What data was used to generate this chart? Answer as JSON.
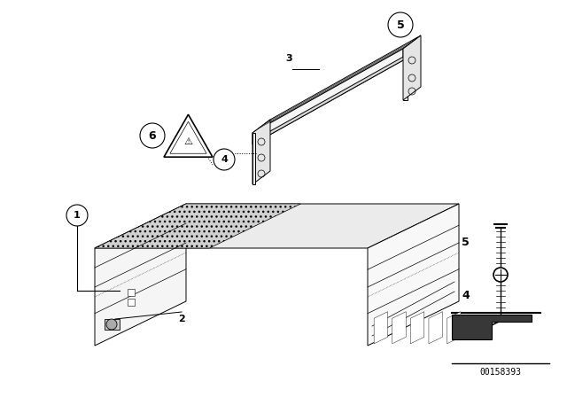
{
  "background_color": "#ffffff",
  "doc_number": "00158393",
  "lw": 0.7
}
